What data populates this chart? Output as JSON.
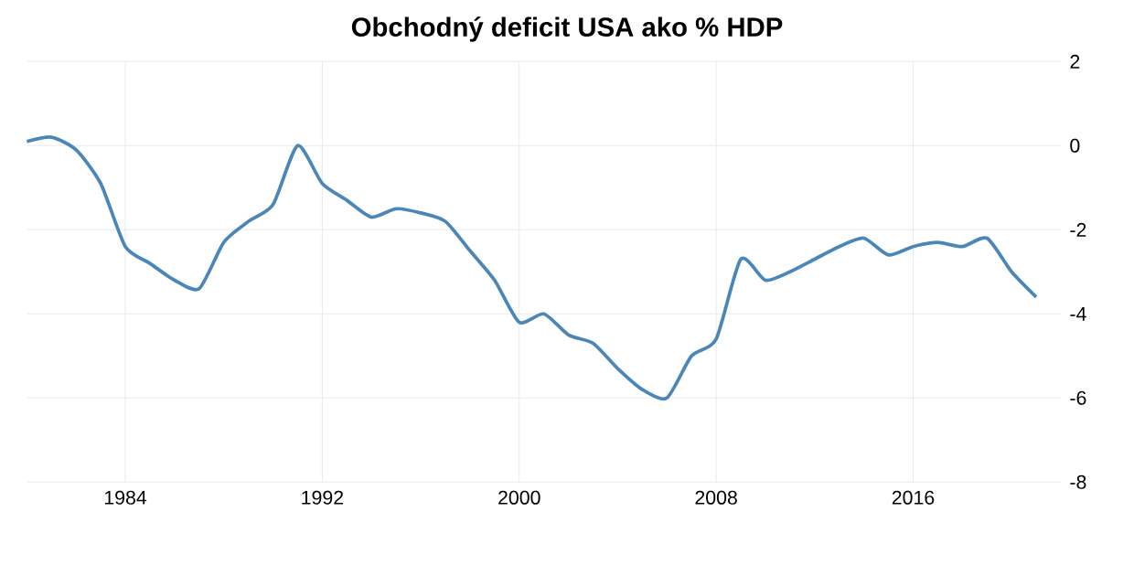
{
  "chart_data": {
    "type": "line",
    "title": "Obchodný deficit USA ako % HDP",
    "x": [
      1980,
      1981,
      1982,
      1983,
      1984,
      1985,
      1986,
      1987,
      1988,
      1989,
      1990,
      1991,
      1992,
      1993,
      1994,
      1995,
      1996,
      1997,
      1998,
      1999,
      2000,
      2001,
      2002,
      2003,
      2004,
      2005,
      2006,
      2007,
      2008,
      2009,
      2010,
      2011,
      2012,
      2013,
      2014,
      2015,
      2016,
      2017,
      2018,
      2019,
      2020,
      2021
    ],
    "series": [
      {
        "color": "#4a86b8",
        "values": [
          0.1,
          0.2,
          -0.1,
          -0.9,
          -2.4,
          -2.8,
          -3.2,
          -3.4,
          -2.3,
          -1.8,
          -1.4,
          0.0,
          -0.9,
          -1.3,
          -1.7,
          -1.5,
          -1.6,
          -1.8,
          -2.5,
          -3.2,
          -4.2,
          -4.0,
          -4.5,
          -4.7,
          -5.3,
          -5.8,
          -6.0,
          -5.0,
          -4.6,
          -2.7,
          -3.2,
          -3.0,
          -2.7,
          -2.4,
          -2.2,
          -2.6,
          -2.4,
          -2.3,
          -2.4,
          -2.2,
          -3.0,
          -3.6
        ]
      }
    ],
    "xlim": [
      1980,
      2022
    ],
    "ylim": [
      -8,
      2
    ],
    "xticks": [
      1984,
      1992,
      2000,
      2008,
      2016
    ],
    "yticks": [
      -8,
      -6,
      -4,
      -2,
      0,
      2
    ],
    "grid": true,
    "marker": "none",
    "line_style": "solid"
  }
}
